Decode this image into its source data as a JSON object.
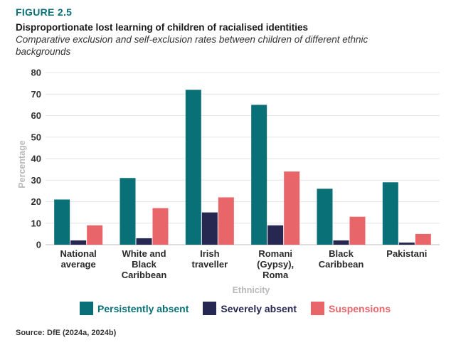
{
  "figure_label": "FIGURE 2.5",
  "title": "Disproportionate lost learning of children of racialised identities",
  "subtitle": "Comparative exclusion and self-exclusion rates between children of different ethnic backgrounds",
  "source": "Source: DfE (2024a, 2024b)",
  "colors": {
    "persistently_absent": "#0a7078",
    "severely_absent": "#262852",
    "suspensions": "#e8656a"
  },
  "chart_data": {
    "type": "bar",
    "ylabel": "Percentage",
    "xlabel": "Ethnicity",
    "ylim": [
      0,
      80
    ],
    "yticks": [
      0,
      10,
      20,
      30,
      40,
      50,
      60,
      70,
      80
    ],
    "grid": true,
    "legend_position": "bottom",
    "categories": [
      [
        "National",
        "average"
      ],
      [
        "White and",
        "Black",
        "Caribbean"
      ],
      [
        "Irish",
        "traveller"
      ],
      [
        "Romani",
        "(Gypsy),",
        "Roma"
      ],
      [
        "Black",
        "Caribbean"
      ],
      [
        "Pakistani"
      ]
    ],
    "series": [
      {
        "name": "Persistently absent",
        "values": [
          21,
          31,
          72,
          65,
          26,
          29
        ]
      },
      {
        "name": "Severely absent",
        "values": [
          2,
          3,
          15,
          9,
          2,
          1
        ]
      },
      {
        "name": "Suspensions",
        "values": [
          9,
          17,
          22,
          34,
          13,
          5
        ]
      }
    ]
  }
}
